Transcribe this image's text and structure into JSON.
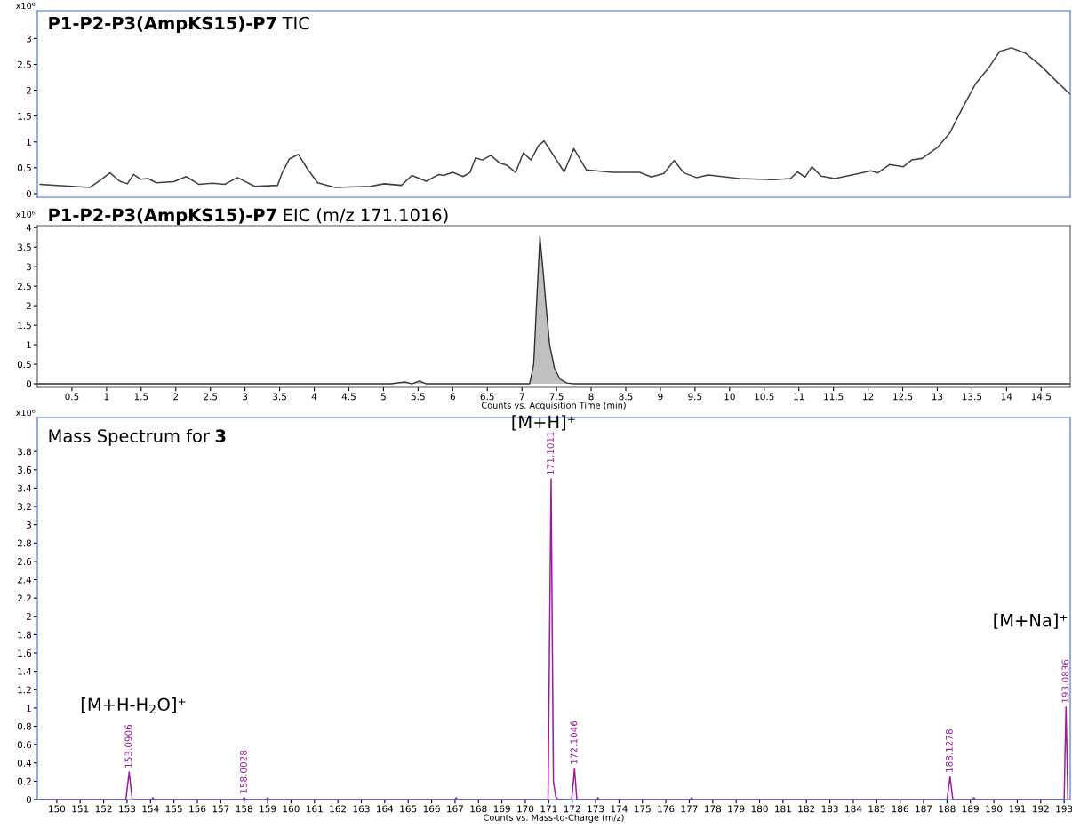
{
  "chart_data": [
    {
      "type": "line",
      "title": "P1-P2-P3(AmpKS15)-P7",
      "subtitle": "TIC",
      "ylabel": "x10⁸",
      "tick_labels": "y",
      "xlim": [
        0,
        14.92
      ],
      "ylim": [
        -0.07,
        3.54
      ],
      "yticks": [
        0,
        0.5,
        1,
        1.5,
        2,
        2.5,
        3
      ],
      "series": [
        {
          "color": "#404040",
          "x": [
            0.04,
            0.76,
            0.86,
            1.05,
            1.19,
            1.3,
            1.39,
            1.49,
            1.6,
            1.72,
            1.97,
            2.15,
            2.33,
            2.53,
            2.71,
            2.89,
            3.14,
            3.47,
            3.54,
            3.64,
            3.77,
            3.9,
            4.05,
            4.3,
            4.81,
            5.01,
            5.26,
            5.41,
            5.62,
            5.8,
            5.87,
            6.0,
            6.15,
            6.25,
            6.33,
            6.43,
            6.55,
            6.68,
            6.78,
            6.91,
            7.02,
            7.13,
            7.24,
            7.32,
            7.61,
            7.75,
            7.93,
            8.31,
            8.7,
            8.87,
            9.05,
            9.2,
            9.34,
            9.52,
            9.69,
            10.14,
            10.63,
            10.88,
            10.98,
            11.09,
            11.19,
            11.32,
            11.52,
            11.87,
            12.04,
            12.14,
            12.31,
            12.51,
            12.63,
            12.78,
            13.0,
            13.18,
            13.35,
            13.55,
            13.75,
            13.9,
            14.07,
            14.27,
            14.49,
            14.74,
            14.92
          ],
          "values": [
            0.18,
            0.12,
            0.21,
            0.4,
            0.24,
            0.19,
            0.37,
            0.28,
            0.29,
            0.21,
            0.23,
            0.33,
            0.18,
            0.2,
            0.18,
            0.31,
            0.14,
            0.16,
            0.41,
            0.67,
            0.76,
            0.48,
            0.21,
            0.12,
            0.14,
            0.19,
            0.16,
            0.35,
            0.24,
            0.37,
            0.35,
            0.41,
            0.33,
            0.41,
            0.69,
            0.65,
            0.74,
            0.59,
            0.55,
            0.41,
            0.79,
            0.65,
            0.93,
            1.02,
            0.42,
            0.87,
            0.46,
            0.41,
            0.41,
            0.32,
            0.39,
            0.64,
            0.4,
            0.31,
            0.36,
            0.29,
            0.27,
            0.29,
            0.42,
            0.32,
            0.52,
            0.34,
            0.29,
            0.39,
            0.44,
            0.4,
            0.56,
            0.52,
            0.65,
            0.68,
            0.89,
            1.17,
            1.62,
            2.12,
            2.45,
            2.75,
            2.82,
            2.72,
            2.48,
            2.15,
            1.92
          ]
        }
      ]
    },
    {
      "type": "area",
      "title": "P1-P2-P3(AmpKS15)-P7",
      "subtitle": "EIC (m/z 171.1016)",
      "ylabel": "x10⁶",
      "xlabel": "Counts vs. Acquisition Time (min)",
      "xlim": [
        0,
        14.92
      ],
      "ylim": [
        -0.09,
        4.05
      ],
      "xticks": [
        0.5,
        1,
        1.5,
        2,
        2.5,
        3,
        3.5,
        4,
        4.5,
        5,
        5.5,
        6,
        6.5,
        7,
        7.5,
        8,
        8.5,
        9,
        9.5,
        10,
        10.5,
        11,
        11.5,
        12,
        12.5,
        13,
        13.5,
        14,
        14.5
      ],
      "yticks": [
        0,
        0.5,
        1,
        1.5,
        2,
        2.5,
        3,
        3.5,
        4
      ],
      "series": [
        {
          "color": "#c0c0c0",
          "x": [
            0,
            5.11,
            5.31,
            5.41,
            5.52,
            5.62,
            7.11,
            7.17,
            7.21,
            7.26,
            7.31,
            7.35,
            7.4,
            7.47,
            7.55,
            7.65,
            7.75,
            14.92
          ],
          "values": [
            0,
            0,
            0.05,
            0,
            0.07,
            0,
            0,
            0.5,
            2.0,
            3.77,
            2.8,
            1.96,
            1.0,
            0.4,
            0.12,
            0.02,
            0,
            0
          ]
        }
      ]
    },
    {
      "type": "line",
      "title": "Mass Spectrum for",
      "subtitle": "3",
      "ylabel": "x10⁶",
      "xlabel": "Counts vs. Mass-to-Charge (m/z)",
      "xlim": [
        149.17,
        193.26
      ],
      "ylim": [
        0,
        4.17
      ],
      "xticks": [
        150,
        151,
        152,
        153,
        154,
        155,
        156,
        157,
        158,
        159,
        160,
        161,
        162,
        163,
        164,
        165,
        166,
        167,
        168,
        169,
        170,
        171,
        172,
        173,
        174,
        175,
        176,
        177,
        178,
        179,
        180,
        181,
        182,
        183,
        184,
        185,
        186,
        187,
        188,
        189,
        190,
        191,
        192,
        193
      ],
      "yticks": [
        0,
        0.2,
        0.4,
        0.6,
        0.8,
        1,
        1.2,
        1.4,
        1.6,
        1.8,
        2,
        2.2,
        2.4,
        2.6,
        2.8,
        3,
        3.2,
        3.4,
        3.6,
        3.8
      ],
      "series": [
        {
          "color": "#9b1f9b",
          "x": [
            149.17,
            152.95,
            153.09,
            153.22,
            154.05,
            154.1,
            154.15,
            157.95,
            158.0,
            158.05,
            158.95,
            159.0,
            159.05,
            167.0,
            167.05,
            167.1,
            170.97,
            171.1,
            171.2,
            171.3,
            171.4,
            171.98,
            172.1,
            172.2,
            173.05,
            173.1,
            173.15,
            177.05,
            177.1,
            177.15,
            188.0,
            188.13,
            188.25,
            189.1,
            189.15,
            189.2,
            193.0,
            193.08,
            193.16
          ],
          "values": [
            0,
            0,
            0.3,
            0,
            0,
            0.02,
            0,
            0,
            0.02,
            0,
            0,
            0.02,
            0,
            0,
            0.02,
            0,
            0,
            3.5,
            0.2,
            0.03,
            0,
            0,
            0.34,
            0,
            0,
            0.02,
            0,
            0,
            0.02,
            0,
            0,
            0.25,
            0,
            0,
            0.02,
            0,
            0,
            1.01,
            0
          ]
        }
      ],
      "annotations": [
        {
          "text": "153.0906",
          "x": 153.0906,
          "y": 0.3
        },
        {
          "text": "158.0028",
          "x": 158.0028,
          "y": 0.02
        },
        {
          "text": "171.1011",
          "x": 171.1011,
          "y": 3.5
        },
        {
          "text": "172.1046",
          "x": 172.1046,
          "y": 0.34
        },
        {
          "text": "188.1278",
          "x": 188.1278,
          "y": 0.25
        },
        {
          "text": "193.0836",
          "x": 193.0836,
          "y": 1.01
        },
        "[M+H-H$_{2}$O]⁺",
        "[M+H]⁺",
        "[M+Na]⁺"
      ]
    }
  ]
}
